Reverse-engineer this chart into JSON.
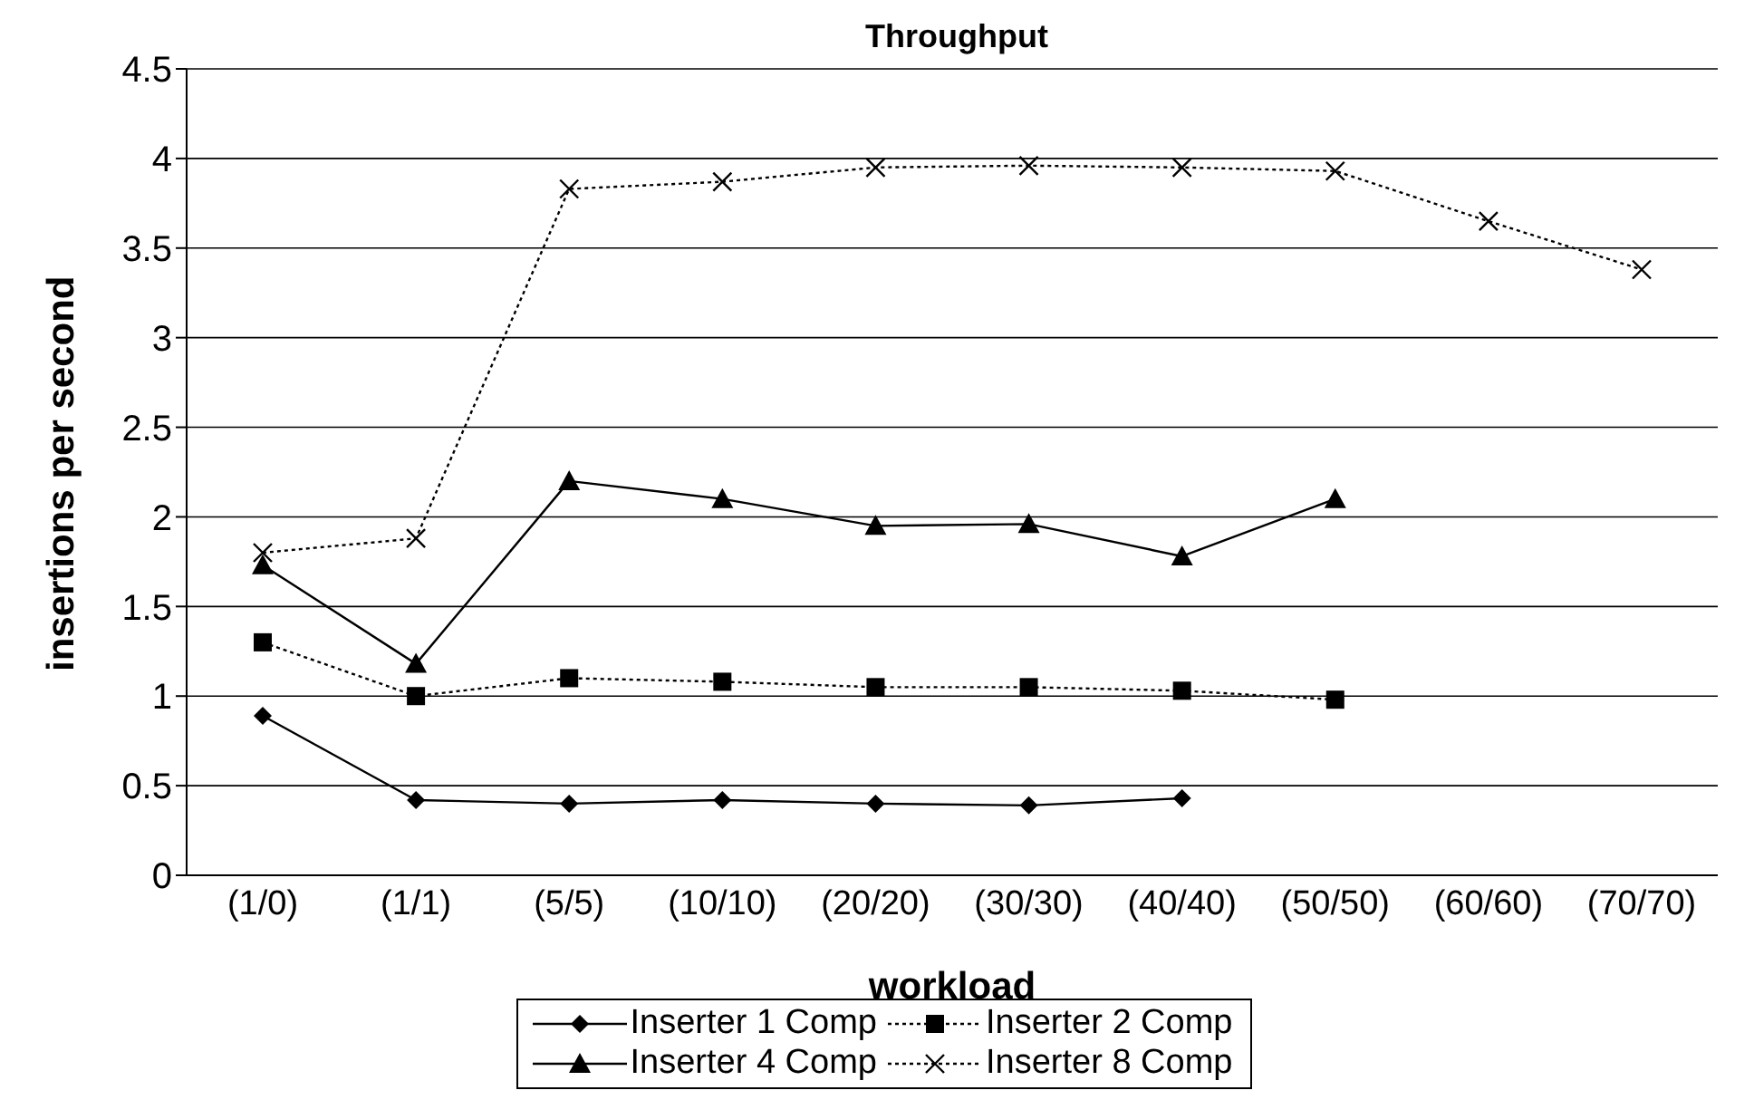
{
  "chart_data": {
    "type": "line",
    "title": "Throughput",
    "xlabel": "workload",
    "ylabel": "insertions per second",
    "categories": [
      "(1/0)",
      "(1/1)",
      "(5/5)",
      "(10/10)",
      "(20/20)",
      "(30/30)",
      "(40/40)",
      "(50/50)",
      "(60/60)",
      "(70/70)"
    ],
    "series": [
      {
        "name": "Inserter 1 Comp",
        "color": "#000000",
        "marker": "diamond",
        "line_style": "solid",
        "values": [
          0.89,
          0.42,
          0.4,
          0.42,
          0.4,
          0.39,
          0.43,
          null,
          null,
          null
        ]
      },
      {
        "name": "Inserter 2 Comp",
        "color": "#000000",
        "marker": "square",
        "line_style": "dotted",
        "values": [
          1.3,
          1.0,
          1.1,
          1.08,
          1.05,
          1.05,
          1.03,
          0.98,
          null,
          null
        ]
      },
      {
        "name": "Inserter 4 Comp",
        "color": "#000000",
        "marker": "triangle",
        "line_style": "solid",
        "values": [
          1.73,
          1.18,
          2.2,
          2.1,
          1.95,
          1.96,
          1.78,
          2.1,
          null,
          null
        ]
      },
      {
        "name": "Inserter 8 Comp",
        "color": "#000000",
        "marker": "cross",
        "line_style": "dotted",
        "values": [
          1.8,
          1.88,
          3.83,
          3.87,
          3.95,
          3.96,
          3.95,
          3.93,
          3.65,
          3.38
        ]
      }
    ],
    "ylim": [
      0,
      4.5
    ],
    "yticks": [
      0,
      0.5,
      1,
      1.5,
      2,
      2.5,
      3,
      3.5,
      4,
      4.5
    ],
    "grid": "y",
    "legend": "bottom"
  }
}
